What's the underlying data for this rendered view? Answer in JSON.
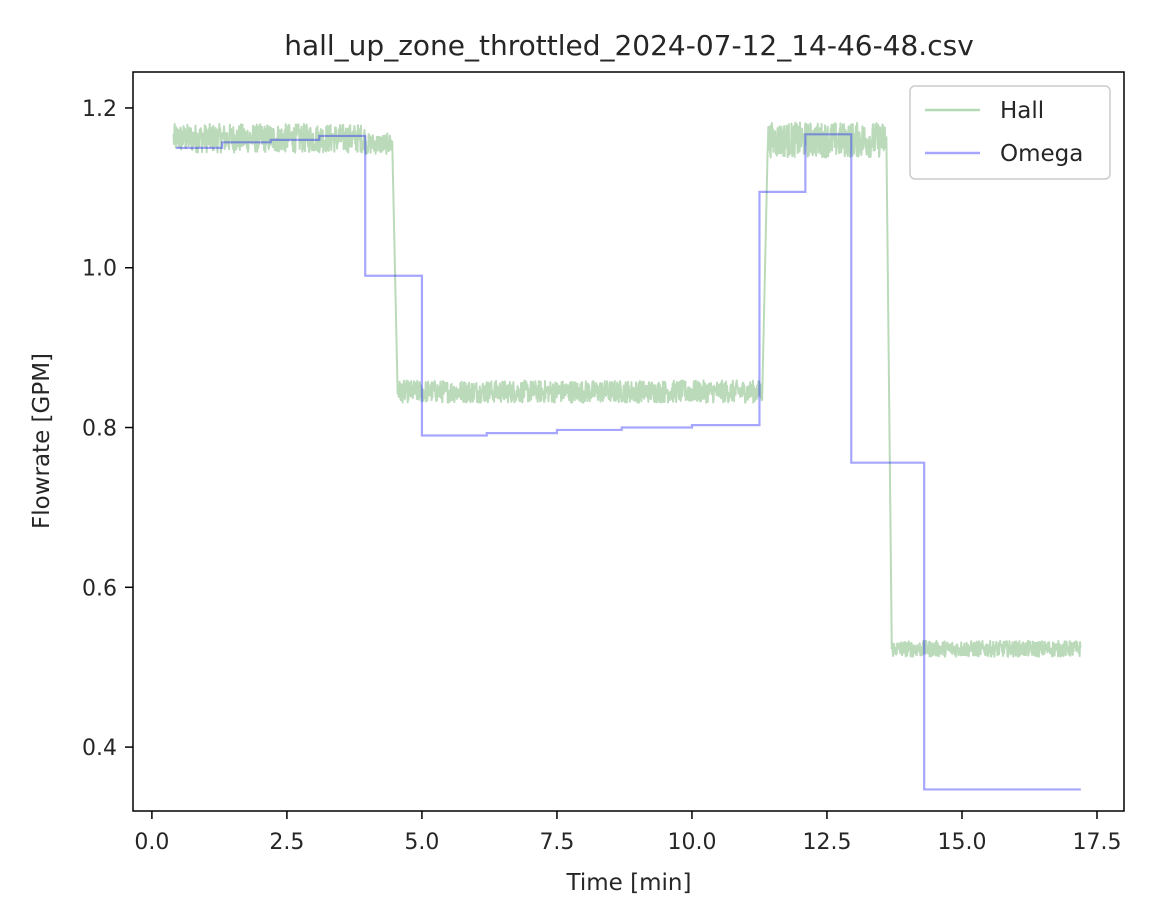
{
  "chart_data": {
    "type": "line",
    "title": "hall_up_zone_throttled_2024-07-12_14-46-48.csv",
    "xlabel": "Time [min]",
    "ylabel": "Flowrate [GPM]",
    "xlim": [
      -0.35,
      18.0
    ],
    "ylim": [
      0.32,
      1.245
    ],
    "xticks": [
      0.0,
      2.5,
      5.0,
      7.5,
      10.0,
      12.5,
      15.0,
      17.5
    ],
    "xtick_labels": [
      "0.0",
      "2.5",
      "5.0",
      "7.5",
      "10.0",
      "12.5",
      "15.0",
      "17.5"
    ],
    "yticks": [
      0.4,
      0.6,
      0.8,
      1.0,
      1.2
    ],
    "ytick_labels": [
      "0.4",
      "0.6",
      "0.8",
      "1.0",
      "1.2"
    ],
    "grid": false,
    "legend_position": "top-right",
    "series": [
      {
        "name": "Hall",
        "color": "#5aa85a",
        "style": "noisy-band",
        "segments": [
          {
            "x_start": 0.4,
            "x_end": 3.95,
            "center": 1.162,
            "noise": 0.018
          },
          {
            "x_start": 3.95,
            "x_end": 4.45,
            "center": 1.155,
            "noise": 0.013
          },
          {
            "x_start": 4.55,
            "x_end": 11.3,
            "center": 0.845,
            "noise": 0.014
          },
          {
            "x_start": 11.4,
            "x_end": 13.6,
            "center": 1.16,
            "noise": 0.022
          },
          {
            "x_start": 13.7,
            "x_end": 17.2,
            "center": 0.523,
            "noise": 0.01
          }
        ]
      },
      {
        "name": "Omega",
        "color": "#0000ff",
        "style": "step",
        "x": [
          0.45,
          1.3,
          2.2,
          3.1,
          3.95,
          5.0,
          6.2,
          7.5,
          8.7,
          10.0,
          11.25,
          12.1,
          12.95,
          14.3,
          17.2
        ],
        "y": [
          1.15,
          1.157,
          1.16,
          1.165,
          0.99,
          0.79,
          0.793,
          0.797,
          0.8,
          0.803,
          1.095,
          1.167,
          0.756,
          0.347,
          0.347
        ]
      }
    ]
  }
}
